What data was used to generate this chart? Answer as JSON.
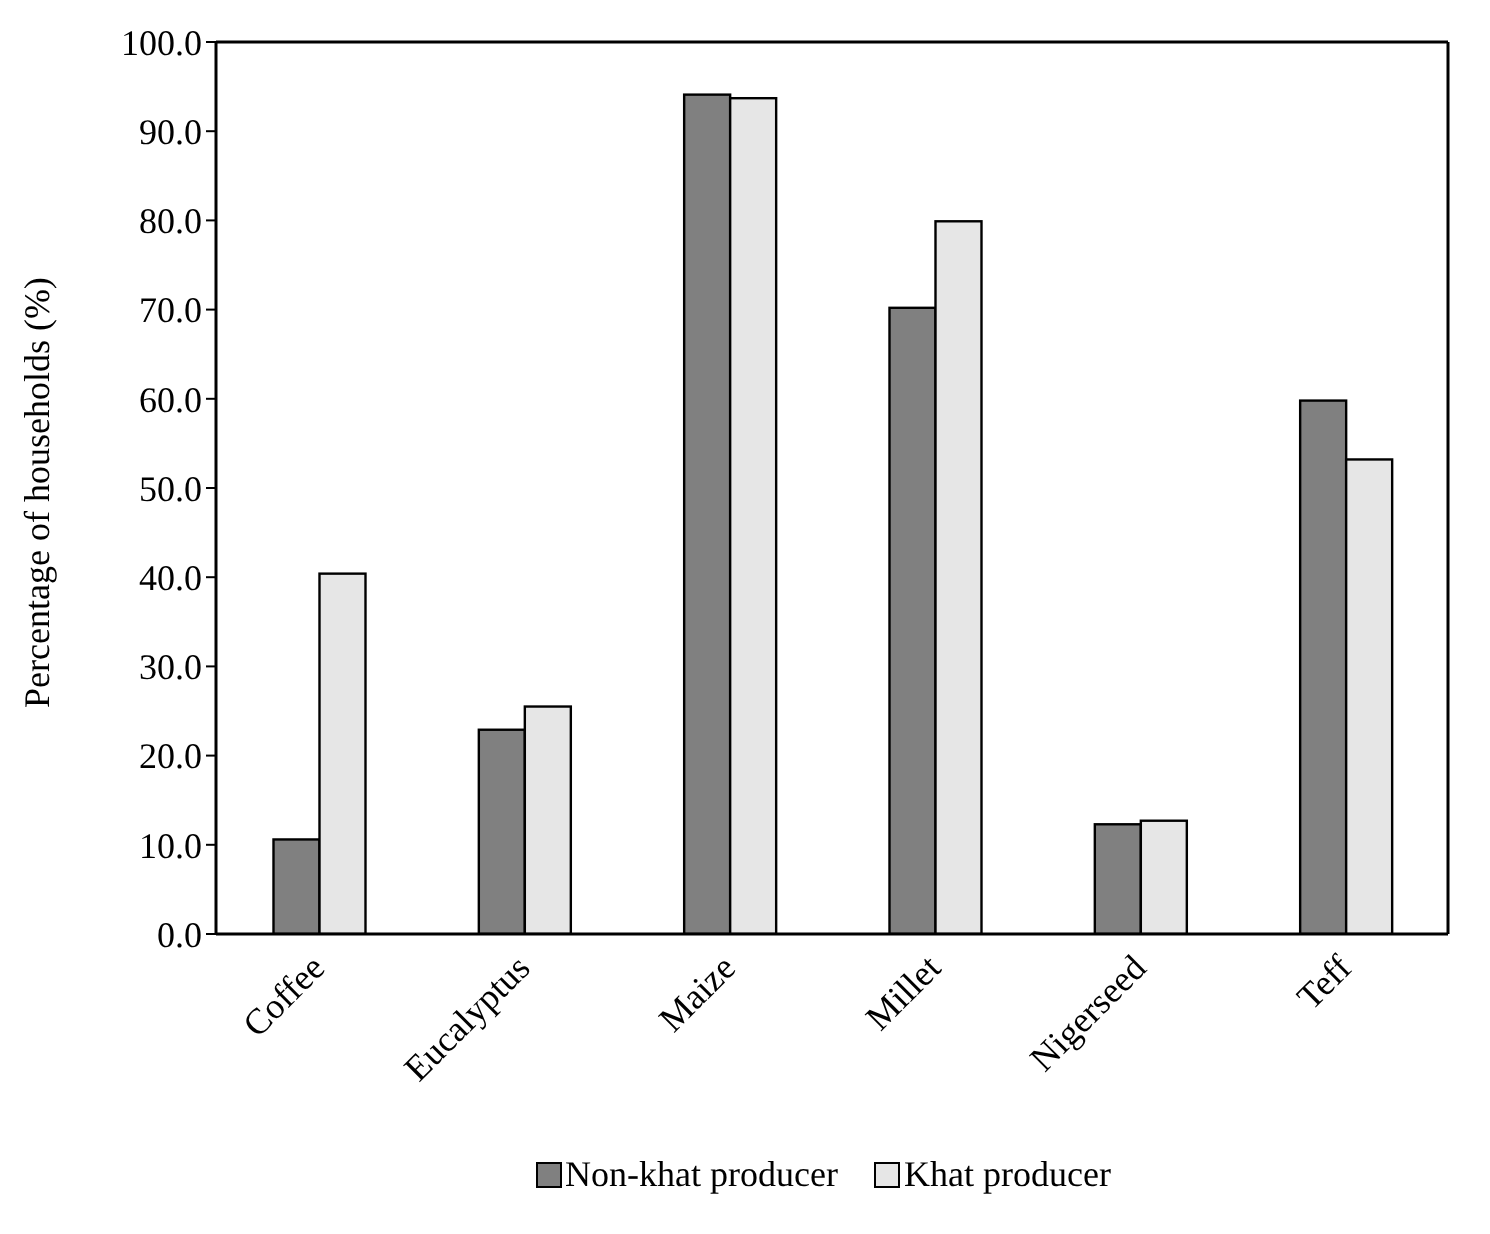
{
  "chart_data": {
    "type": "bar",
    "ylabel": "Percentage of households (%)",
    "categories": [
      "Coffee",
      "Eucalyptus",
      "Maize",
      "Millet",
      "Nigerseed",
      "Teff"
    ],
    "series": [
      {
        "name": "Non-khat producer",
        "color": "#808080",
        "values": [
          10.6,
          22.9,
          94.1,
          70.2,
          12.3,
          59.8
        ]
      },
      {
        "name": "Khat producer",
        "color": "#e6e6e6",
        "values": [
          40.4,
          25.5,
          93.7,
          79.9,
          12.7,
          53.2
        ]
      }
    ],
    "ylim": [
      0,
      100
    ],
    "yticks": [
      {
        "value": 0,
        "label": "0.0"
      },
      {
        "value": 10,
        "label": "10.0"
      },
      {
        "value": 20,
        "label": "20.0"
      },
      {
        "value": 30,
        "label": "30.0"
      },
      {
        "value": 40,
        "label": "40.0"
      },
      {
        "value": 50,
        "label": "50.0"
      },
      {
        "value": 60,
        "label": "60.0"
      },
      {
        "value": 70,
        "label": "70.0"
      },
      {
        "value": 80,
        "label": "80.0"
      },
      {
        "value": 90,
        "label": "90.0"
      },
      {
        "value": 100,
        "label": "100.0"
      }
    ],
    "legend": "bottom"
  }
}
